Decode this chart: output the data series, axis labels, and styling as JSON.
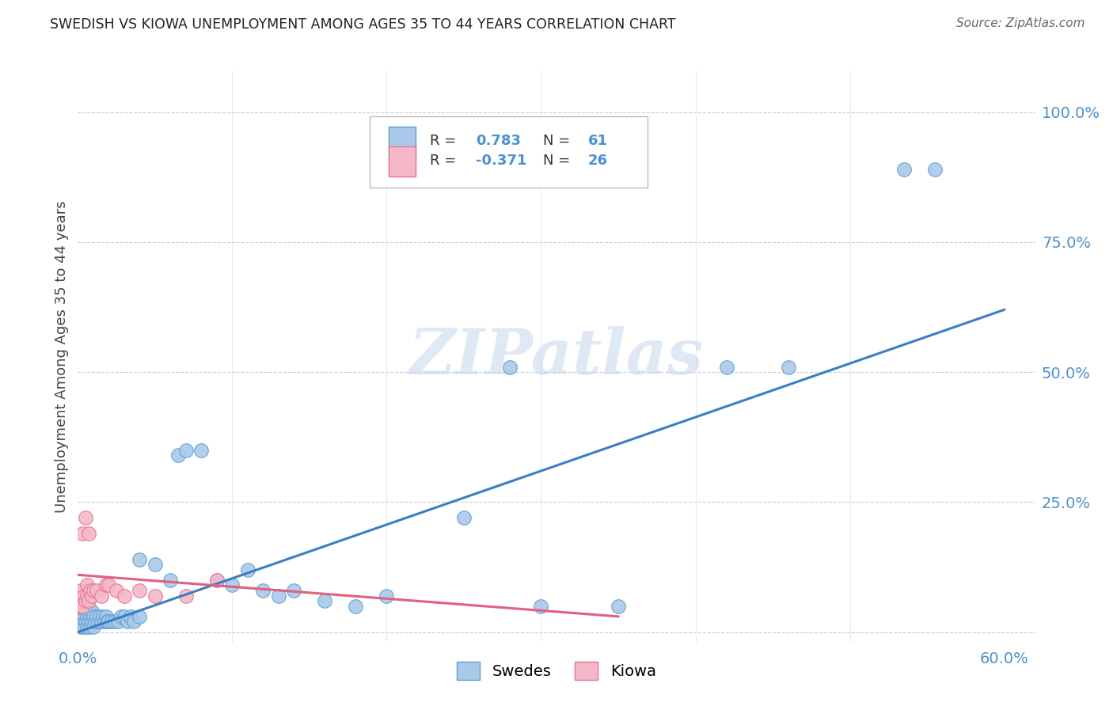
{
  "title": "SWEDISH VS KIOWA UNEMPLOYMENT AMONG AGES 35 TO 44 YEARS CORRELATION CHART",
  "source": "Source: ZipAtlas.com",
  "ylabel": "Unemployment Among Ages 35 to 44 years",
  "xlim": [
    0.0,
    0.62
  ],
  "ylim": [
    -0.02,
    1.08
  ],
  "yticks_right": [
    0.0,
    0.25,
    0.5,
    0.75,
    1.0
  ],
  "yticklabels_right": [
    "",
    "25.0%",
    "50.0%",
    "75.0%",
    "100.0%"
  ],
  "swedes_color": "#aac9e8",
  "kiowa_color": "#f5b8c8",
  "swedes_edge_color": "#5a9fd4",
  "kiowa_edge_color": "#e87090",
  "swedes_line_color": "#3a7fc1",
  "kiowa_line_color": "#e06080",
  "blue_text_color": "#4a90d9",
  "grid_color": "#cccccc",
  "background_color": "#ffffff",
  "swedes_x": [
    0.001,
    0.002,
    0.002,
    0.003,
    0.003,
    0.004,
    0.004,
    0.005,
    0.005,
    0.006,
    0.006,
    0.007,
    0.007,
    0.008,
    0.008,
    0.009,
    0.009,
    0.01,
    0.01,
    0.011,
    0.012,
    0.013,
    0.014,
    0.015,
    0.016,
    0.017,
    0.018,
    0.019,
    0.02,
    0.022,
    0.024,
    0.026,
    0.028,
    0.03,
    0.032,
    0.034,
    0.036,
    0.04,
    0.04,
    0.05,
    0.06,
    0.065,
    0.07,
    0.08,
    0.09,
    0.1,
    0.11,
    0.12,
    0.13,
    0.14,
    0.16,
    0.18,
    0.2,
    0.25,
    0.28,
    0.3,
    0.35,
    0.42,
    0.46,
    0.535,
    0.555
  ],
  "swedes_y": [
    0.02,
    0.01,
    0.03,
    0.02,
    0.04,
    0.01,
    0.03,
    0.02,
    0.04,
    0.01,
    0.03,
    0.02,
    0.04,
    0.01,
    0.03,
    0.02,
    0.04,
    0.01,
    0.03,
    0.02,
    0.03,
    0.02,
    0.03,
    0.02,
    0.03,
    0.02,
    0.03,
    0.02,
    0.02,
    0.02,
    0.02,
    0.02,
    0.03,
    0.03,
    0.02,
    0.03,
    0.02,
    0.03,
    0.14,
    0.13,
    0.1,
    0.34,
    0.35,
    0.35,
    0.1,
    0.09,
    0.12,
    0.08,
    0.07,
    0.08,
    0.06,
    0.05,
    0.07,
    0.22,
    0.51,
    0.05,
    0.05,
    0.51,
    0.51,
    0.89,
    0.89
  ],
  "kiowa_x": [
    0.001,
    0.001,
    0.002,
    0.002,
    0.003,
    0.003,
    0.004,
    0.005,
    0.005,
    0.006,
    0.006,
    0.007,
    0.007,
    0.008,
    0.009,
    0.01,
    0.012,
    0.015,
    0.018,
    0.02,
    0.025,
    0.03,
    0.04,
    0.05,
    0.07,
    0.09
  ],
  "kiowa_y": [
    0.05,
    0.07,
    0.06,
    0.08,
    0.05,
    0.19,
    0.07,
    0.06,
    0.22,
    0.07,
    0.09,
    0.06,
    0.19,
    0.08,
    0.07,
    0.08,
    0.08,
    0.07,
    0.09,
    0.09,
    0.08,
    0.07,
    0.08,
    0.07,
    0.07,
    0.1
  ],
  "swedes_trendline_x": [
    0.0,
    0.6
  ],
  "swedes_trendline_y": [
    0.0,
    0.62
  ],
  "kiowa_trendline_x": [
    0.0,
    0.35
  ],
  "kiowa_trendline_y": [
    0.11,
    0.03
  ]
}
